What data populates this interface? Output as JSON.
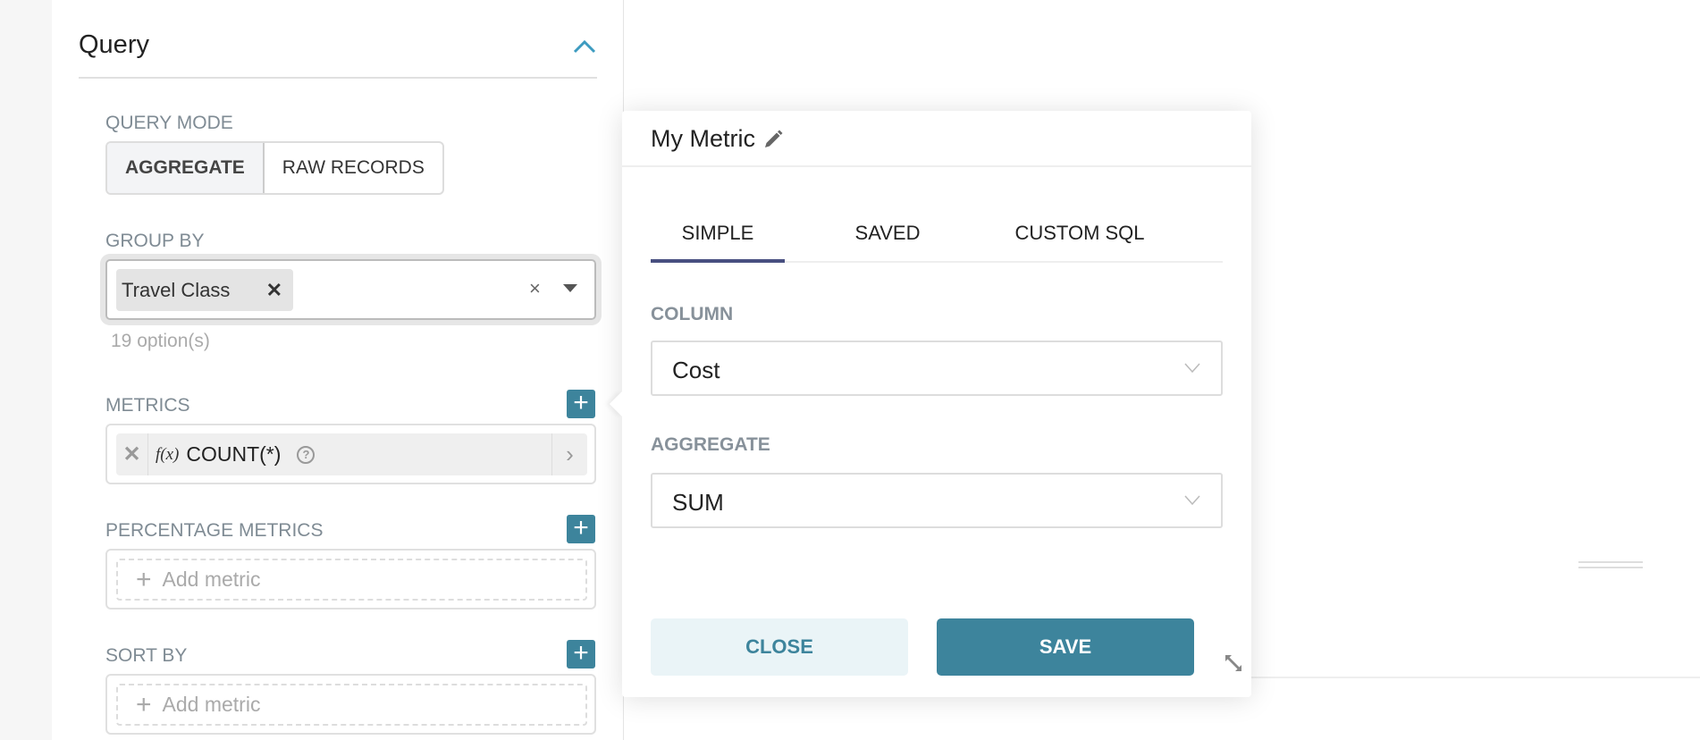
{
  "query": {
    "title": "Query",
    "query_mode": {
      "label": "QUERY MODE",
      "options": [
        "AGGREGATE",
        "RAW RECORDS"
      ],
      "selected": "AGGREGATE"
    },
    "group_by": {
      "label": "GROUP BY",
      "tags": [
        "Travel Class"
      ],
      "hint": "19 option(s)"
    },
    "metrics": {
      "label": "METRICS",
      "items": [
        {
          "fx": "f(x)",
          "name": "COUNT(*)"
        }
      ]
    },
    "percentage_metrics": {
      "label": "PERCENTAGE METRICS",
      "placeholder": "Add metric"
    },
    "sort_by": {
      "label": "SORT BY",
      "placeholder": "Add metric"
    }
  },
  "popover": {
    "title": "My Metric",
    "tabs": [
      "SIMPLE",
      "SAVED",
      "CUSTOM SQL"
    ],
    "active_tab": "SIMPLE",
    "column": {
      "label": "COLUMN",
      "value": "Cost"
    },
    "aggregate": {
      "label": "AGGREGATE",
      "value": "SUM"
    },
    "close_label": "CLOSE",
    "save_label": "SAVE"
  },
  "colors": {
    "accent": "#3d849c",
    "tab_underline": "#484f80",
    "close_bg": "#eaf4f7"
  }
}
